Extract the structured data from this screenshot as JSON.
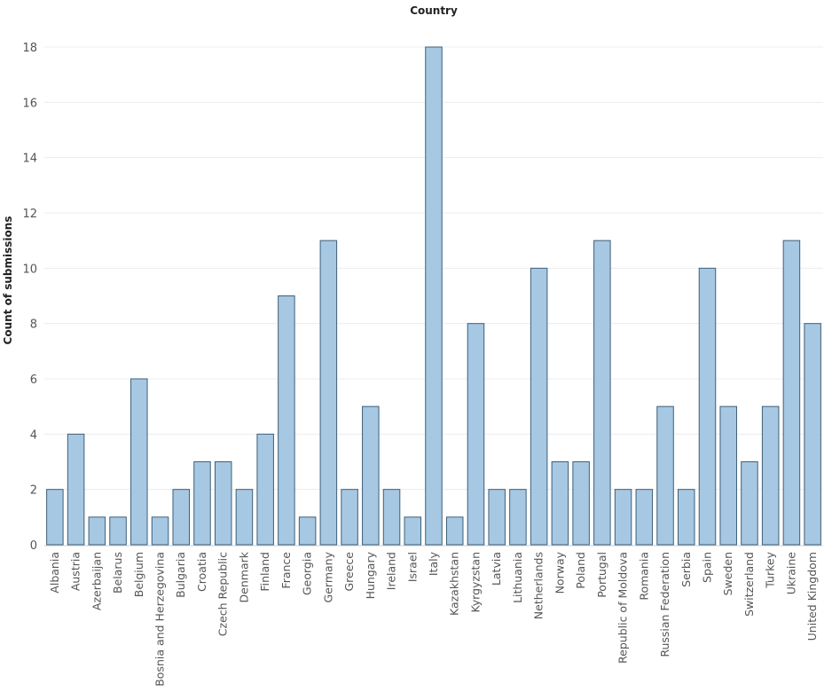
{
  "chart_data": {
    "type": "bar",
    "title": "Country",
    "xlabel": "",
    "ylabel": "Count of submissions",
    "ylim": [
      0,
      18
    ],
    "yticks": [
      0,
      2,
      4,
      6,
      8,
      10,
      12,
      14,
      16,
      18
    ],
    "grid": true,
    "colors": {
      "bar_fill": "#a6c8e3",
      "bar_stroke": "#3f5f78"
    },
    "categories": [
      "Albania",
      "Austria",
      "Azerbaijan",
      "Belarus",
      "Belgium",
      "Bosnia and Herzegovina",
      "Bulgaria",
      "Croatia",
      "Czech Republic",
      "Denmark",
      "Finland",
      "France",
      "Georgia",
      "Germany",
      "Greece",
      "Hungary",
      "Ireland",
      "Israel",
      "Italy",
      "Kazakhstan",
      "Kyrgyzstan",
      "Latvia",
      "Lithuania",
      "Netherlands",
      "Norway",
      "Poland",
      "Portugal",
      "Republic of Moldova",
      "Romania",
      "Russian Federation",
      "Serbia",
      "Spain",
      "Sweden",
      "Switzerland",
      "Turkey",
      "Ukraine",
      "United Kingdom"
    ],
    "values": [
      2,
      4,
      1,
      1,
      6,
      1,
      2,
      3,
      3,
      2,
      4,
      9,
      1,
      11,
      2,
      5,
      2,
      1,
      18,
      1,
      8,
      2,
      2,
      10,
      3,
      3,
      11,
      2,
      2,
      5,
      2,
      10,
      5,
      3,
      5,
      11,
      8
    ]
  }
}
